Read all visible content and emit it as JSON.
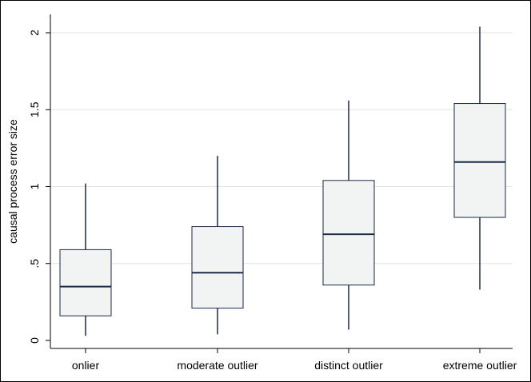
{
  "chart_data": {
    "type": "box",
    "title": "",
    "xlabel": "",
    "ylabel": "causal process error size",
    "ylim": [
      -0.02,
      2.08
    ],
    "yticks": [
      0,
      0.5,
      1,
      1.5,
      2
    ],
    "ytick_labels": [
      "0",
      ".5",
      "1",
      "1.5",
      "2"
    ],
    "grid": true,
    "categories": [
      "onlier",
      "moderate outlier",
      "distinct outlier",
      "extreme outlier"
    ],
    "boxes": [
      {
        "category": "onlier",
        "whisker_low": 0.03,
        "q1": 0.16,
        "median": 0.35,
        "q3": 0.59,
        "whisker_high": 1.02
      },
      {
        "category": "moderate outlier",
        "whisker_low": 0.04,
        "q1": 0.21,
        "median": 0.44,
        "q3": 0.74,
        "whisker_high": 1.2
      },
      {
        "category": "distinct outlier",
        "whisker_low": 0.07,
        "q1": 0.36,
        "median": 0.69,
        "q3": 1.04,
        "whisker_high": 1.56
      },
      {
        "category": "extreme outlier",
        "whisker_low": 0.33,
        "q1": 0.8,
        "median": 1.16,
        "q3": 1.54,
        "whisker_high": 2.04
      }
    ],
    "colors": {
      "box_fill": "#f2f3f3",
      "box_stroke": "#1a2a4a",
      "median": "#1a2a4a",
      "grid": "#e3e3e3",
      "axis": "#000000"
    }
  }
}
